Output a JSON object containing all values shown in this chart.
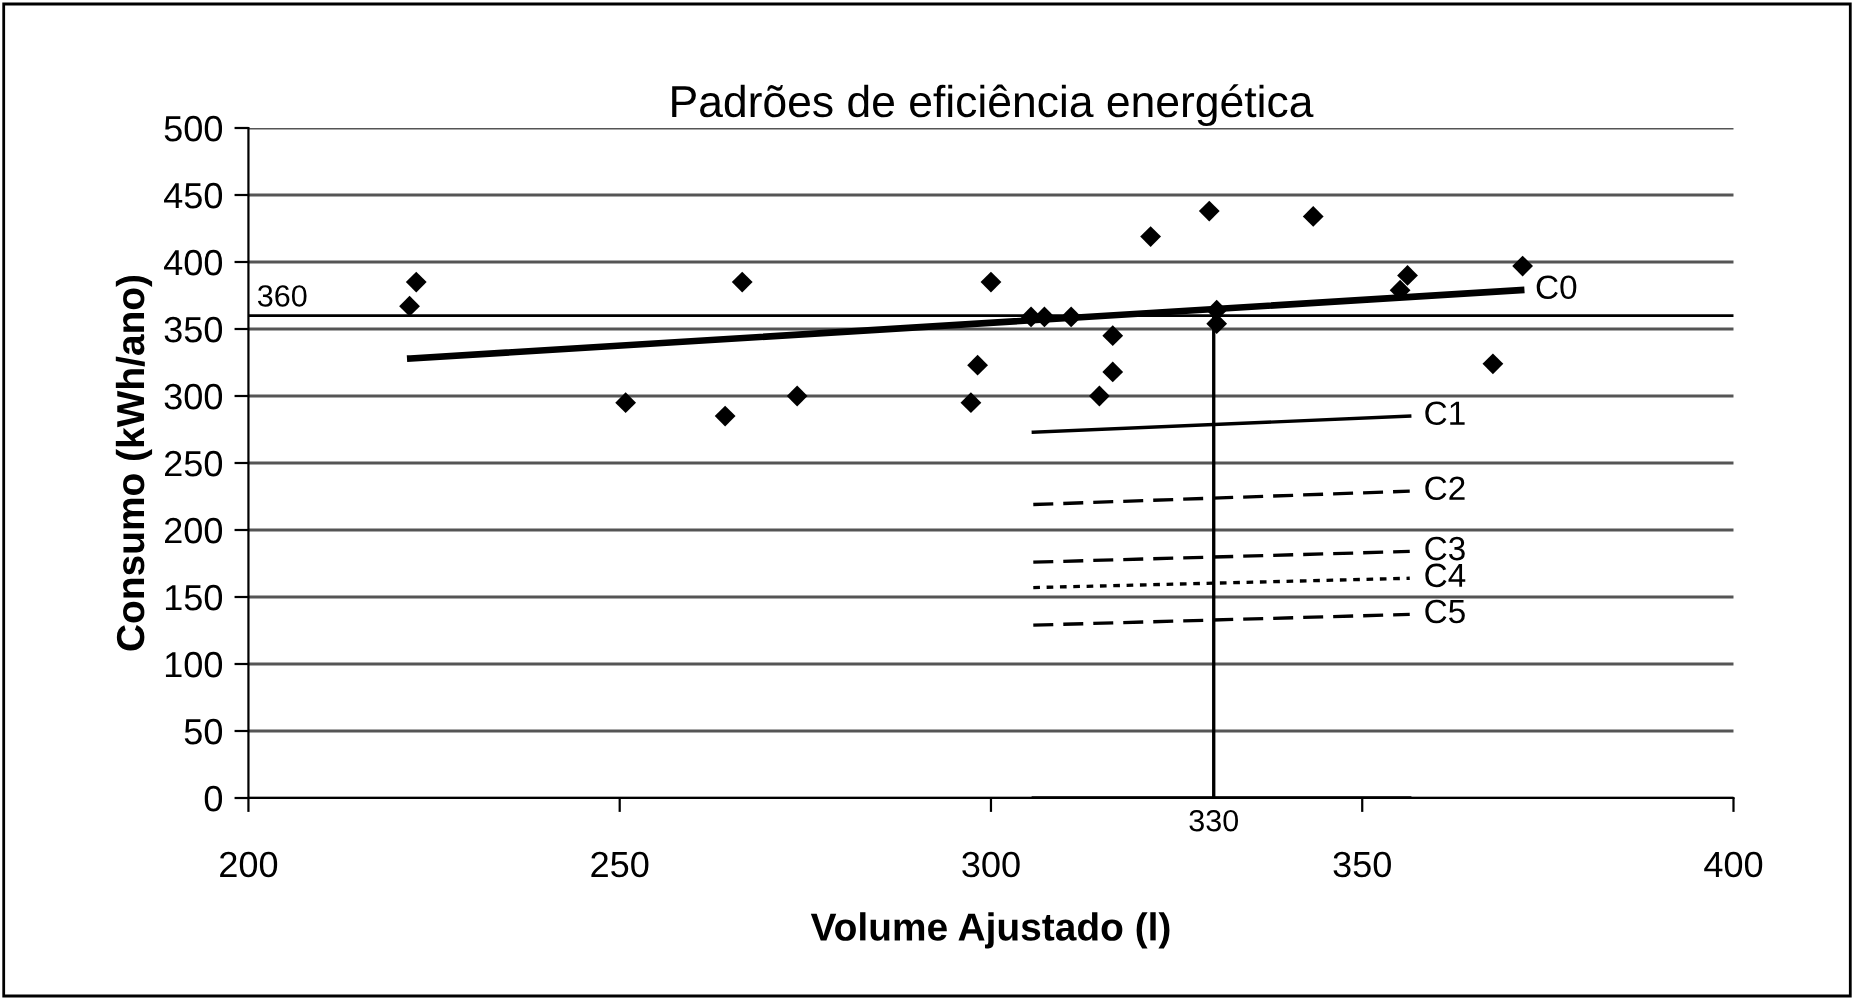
{
  "chart_data": {
    "type": "scatter",
    "title": "Padrões de eficiência energética",
    "xlabel": "Volume Ajustado (l)",
    "ylabel": "Consumo (kWh/ano)",
    "xlim": [
      200,
      400
    ],
    "xticks": [
      200,
      250,
      300,
      350,
      400
    ],
    "ylim": [
      0,
      500
    ],
    "yticks": [
      0,
      50,
      100,
      150,
      200,
      250,
      300,
      350,
      400,
      450,
      500
    ],
    "grid": "y",
    "series": [
      {
        "marker": "diamond",
        "color": "#000000",
        "x": [
          222.6,
          221.7,
          266.5,
          250.8,
          264.2,
          273.9,
          300.0,
          298.2,
          297.3,
          305.4,
          307.2,
          310.8,
          316.4,
          316.4,
          314.6,
          321.5,
          329.4,
          343.4,
          330.4,
          330.4,
          356.1,
          355.1,
          367.6,
          371.6
        ],
        "values": [
          385,
          367,
          385,
          295,
          285,
          300,
          385,
          323,
          295,
          359,
          359,
          359,
          345,
          318,
          300,
          419,
          438,
          434,
          364,
          354,
          390,
          379,
          324,
          397
        ]
      },
      {
        "type": "line",
        "name": "C0",
        "color": "#000000",
        "line_style": "solid",
        "x": [
          221.8,
          371.4
        ],
        "values": [
          328,
          379
        ]
      },
      {
        "type": "line",
        "name": "C1",
        "color": "#000000",
        "line_style": "solid",
        "x": [
          305.7,
          356.4
        ],
        "values": [
          273,
          285
        ]
      },
      {
        "type": "line",
        "name": "C2",
        "color": "#000000",
        "line_style": "dashed",
        "x": [
          305.7,
          356.4
        ],
        "values": [
          219,
          229
        ]
      },
      {
        "type": "line",
        "name": "C3",
        "color": "#000000",
        "line_style": "dashed",
        "x": [
          305.7,
          356.4
        ],
        "values": [
          176,
          184
        ]
      },
      {
        "type": "line",
        "name": "C4",
        "color": "#000000",
        "line_style": "dotted",
        "x": [
          305.7,
          356.4
        ],
        "values": [
          157,
          164
        ]
      },
      {
        "type": "line",
        "name": "C5",
        "color": "#000000",
        "line_style": "dashed",
        "x": [
          305.7,
          356.4
        ],
        "values": [
          129,
          137
        ]
      },
      {
        "type": "line",
        "color": "#000000",
        "line_style": "solid",
        "x": [
          305.7,
          356.4
        ],
        "values": [
          0,
          0
        ]
      },
      {
        "type": "line",
        "name": "330",
        "color": "#000000",
        "line_style": "solid",
        "x": [
          330,
          330
        ],
        "values": [
          0,
          363
        ]
      }
    ],
    "ref_lines": [
      {
        "axis": "y",
        "value": 360,
        "label": "360",
        "color": "#000000"
      }
    ]
  }
}
